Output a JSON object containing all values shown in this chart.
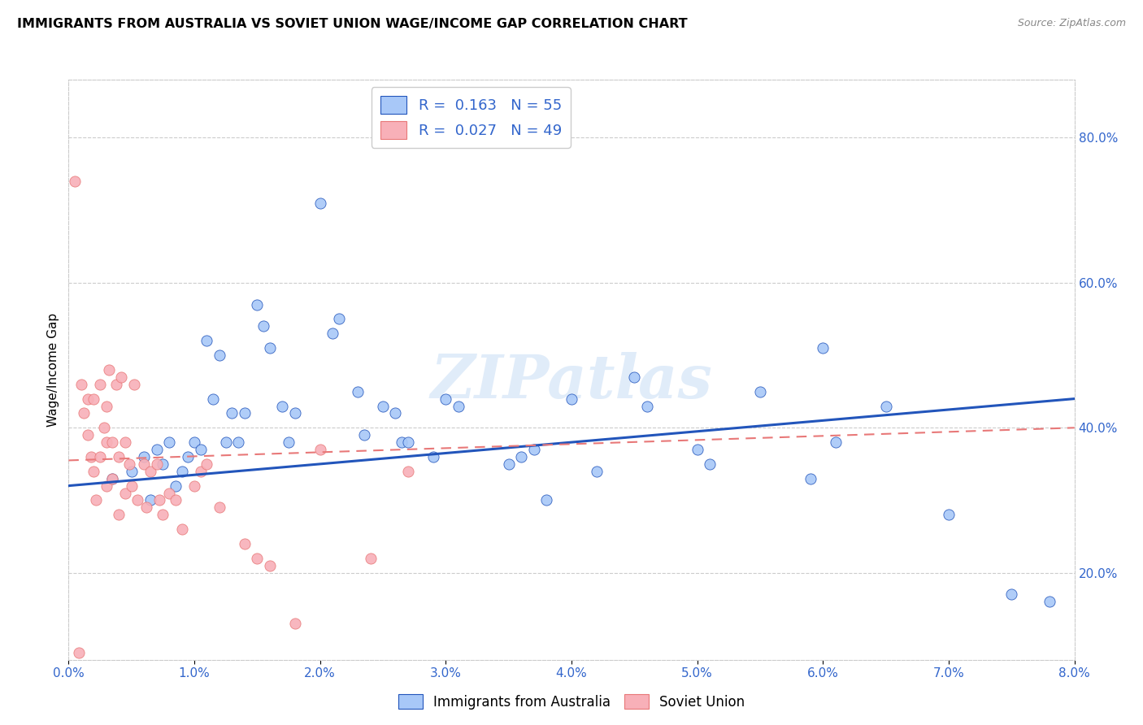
{
  "title": "IMMIGRANTS FROM AUSTRALIA VS SOVIET UNION WAGE/INCOME GAP CORRELATION CHART",
  "source": "Source: ZipAtlas.com",
  "ylabel": "Wage/Income Gap",
  "xmin": 0.0,
  "xmax": 8.0,
  "ymin": 8.0,
  "ymax": 88.0,
  "yticks_right": [
    20.0,
    40.0,
    60.0,
    80.0
  ],
  "legend_r_australia": "0.163",
  "legend_n_australia": "55",
  "legend_r_soviet": "0.027",
  "legend_n_soviet": "49",
  "color_australia": "#a8c8f8",
  "color_soviet": "#f8b0b8",
  "trendline_color_australia": "#2255bb",
  "trendline_color_soviet": "#e87878",
  "watermark": "ZIPatlas",
  "australia_x": [
    0.35,
    0.5,
    0.6,
    0.65,
    0.7,
    0.75,
    0.8,
    0.85,
    0.9,
    0.95,
    1.0,
    1.05,
    1.1,
    1.15,
    1.2,
    1.25,
    1.3,
    1.35,
    1.4,
    1.5,
    1.55,
    1.6,
    1.7,
    1.75,
    1.8,
    2.0,
    2.1,
    2.15,
    2.3,
    2.35,
    2.5,
    2.6,
    2.65,
    2.7,
    2.9,
    3.0,
    3.1,
    3.5,
    3.6,
    3.7,
    3.8,
    4.0,
    4.2,
    4.5,
    4.6,
    5.0,
    5.1,
    5.5,
    5.9,
    6.0,
    6.1,
    6.5,
    7.0,
    7.5,
    7.8
  ],
  "australia_y": [
    33,
    34,
    36,
    30,
    37,
    35,
    38,
    32,
    34,
    36,
    38,
    37,
    52,
    44,
    50,
    38,
    42,
    38,
    42,
    57,
    54,
    51,
    43,
    38,
    42,
    71,
    53,
    55,
    45,
    39,
    43,
    42,
    38,
    38,
    36,
    44,
    43,
    35,
    36,
    37,
    30,
    44,
    34,
    47,
    43,
    37,
    35,
    45,
    33,
    51,
    38,
    43,
    28,
    17,
    16
  ],
  "soviet_x": [
    0.05,
    0.08,
    0.1,
    0.12,
    0.15,
    0.15,
    0.18,
    0.2,
    0.2,
    0.22,
    0.25,
    0.25,
    0.28,
    0.3,
    0.3,
    0.3,
    0.32,
    0.35,
    0.35,
    0.38,
    0.4,
    0.4,
    0.42,
    0.45,
    0.45,
    0.48,
    0.5,
    0.52,
    0.55,
    0.6,
    0.62,
    0.65,
    0.7,
    0.72,
    0.75,
    0.8,
    0.85,
    0.9,
    1.0,
    1.05,
    1.1,
    1.2,
    1.4,
    1.5,
    1.6,
    1.8,
    2.0,
    2.4,
    2.7
  ],
  "soviet_y": [
    74,
    9,
    46,
    42,
    44,
    39,
    36,
    34,
    44,
    30,
    46,
    36,
    40,
    43,
    38,
    32,
    48,
    38,
    33,
    46,
    36,
    28,
    47,
    38,
    31,
    35,
    32,
    46,
    30,
    35,
    29,
    34,
    35,
    30,
    28,
    31,
    30,
    26,
    32,
    34,
    35,
    29,
    24,
    22,
    21,
    13,
    37,
    22,
    34
  ],
  "trendline_aus_x0": 0.0,
  "trendline_aus_y0": 32.0,
  "trendline_aus_x1": 8.0,
  "trendline_aus_y1": 44.0,
  "trendline_sov_x0": 0.0,
  "trendline_sov_y0": 35.5,
  "trendline_sov_x1": 8.0,
  "trendline_sov_y1": 40.0
}
